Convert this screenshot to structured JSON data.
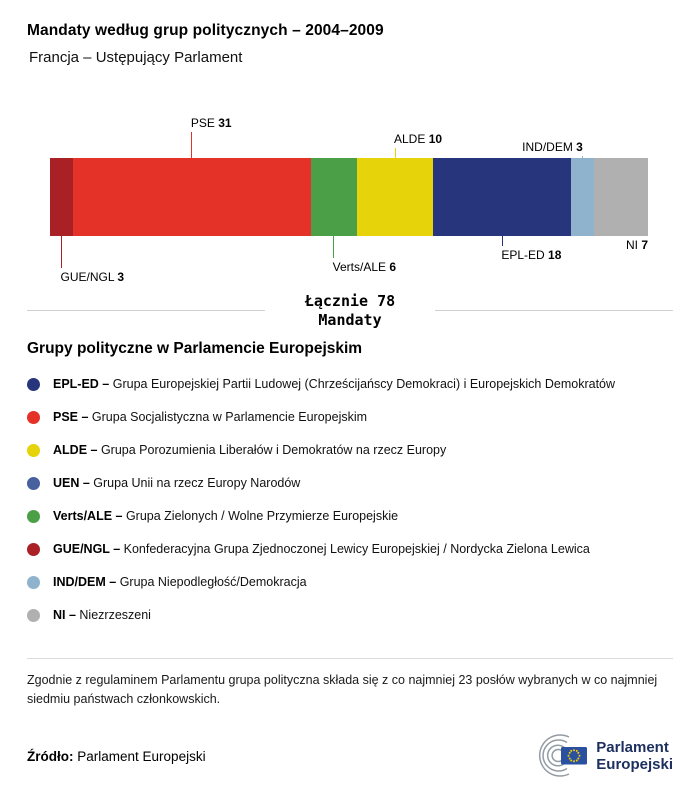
{
  "chart_data": {
    "type": "stacked-bar",
    "title": "Mandaty według grup politycznych – 2004–2009",
    "subtitle": "Francja – Ustępujący Parlament",
    "total": 78,
    "total_label_line1": "Łącznie 78",
    "total_label_line2": "Mandaty",
    "unit": "Mandaty",
    "segments": [
      {
        "name": "GUE/NGL",
        "value": 3,
        "color": "#a92125",
        "label_position": "below",
        "line_height": 32,
        "align": "left"
      },
      {
        "name": "PSE",
        "value": 31,
        "color": "#e53228",
        "label_position": "above",
        "line_height": 26,
        "align": "left"
      },
      {
        "name": "Verts/ALE",
        "value": 6,
        "color": "#4ba047",
        "label_position": "below",
        "line_height": 22,
        "align": "left"
      },
      {
        "name": "ALDE",
        "value": 10,
        "color": "#e6d30a",
        "label_position": "above",
        "line_height": 10,
        "align": "left"
      },
      {
        "name": "EPL-ED",
        "value": 18,
        "color": "#27357c",
        "label_position": "below",
        "line_height": 10,
        "align": "left"
      },
      {
        "name": "IND/DEM",
        "value": 3,
        "color": "#8fb3cd",
        "label_position": "above",
        "line_height": 2,
        "align": "right"
      },
      {
        "name": "NI",
        "value": 7,
        "color": "#b0b0b0",
        "label_position": "below",
        "line_height": 0,
        "align": "end"
      }
    ]
  },
  "legend": {
    "heading": "Grupy polityczne w Parlamencie Europejskim",
    "items": [
      {
        "abbr": "EPL-ED –",
        "desc": "Grupa Europejskiej Partii Ludowej (Chrześcijańscy Demokraci) i Europejskich Demokratów",
        "color": "#27357c"
      },
      {
        "abbr": "PSE –",
        "desc": "Grupa Socjalistyczna w Parlamencie Europejskim",
        "color": "#e53228"
      },
      {
        "abbr": "ALDE –",
        "desc": "Grupa Porozumienia Liberałów i Demokratów na rzecz Europy",
        "color": "#e6d30a"
      },
      {
        "abbr": "UEN –",
        "desc": "Grupa Unii na rzecz Europy Narodów",
        "color": "#47609e"
      },
      {
        "abbr": "Verts/ALE –",
        "desc": "Grupa Zielonych / Wolne Przymierze Europejskie",
        "color": "#4ba047"
      },
      {
        "abbr": "GUE/NGL –",
        "desc": "Konfederacyjna Grupa Zjednoczonej Lewicy Europejskiej / Nordycka Zielona Lewica",
        "color": "#a92125"
      },
      {
        "abbr": "IND/DEM –",
        "desc": "Grupa Niepodległość/Demokracja",
        "color": "#8fb3cd"
      },
      {
        "abbr": "NI –",
        "desc": "Niezrzeszeni",
        "color": "#b0b0b0"
      }
    ]
  },
  "footnote": {
    "text": "Zgodnie z regulaminem Parlamentu grupa polityczna składa się z co najmniej 23 posłów wybranych w co najmniej siedmiu państwach członkowskich."
  },
  "source": {
    "label": "Źródło:",
    "value": "Parlament Europejski"
  },
  "logo": {
    "line1": "Parlament",
    "line2": "Europejski"
  }
}
